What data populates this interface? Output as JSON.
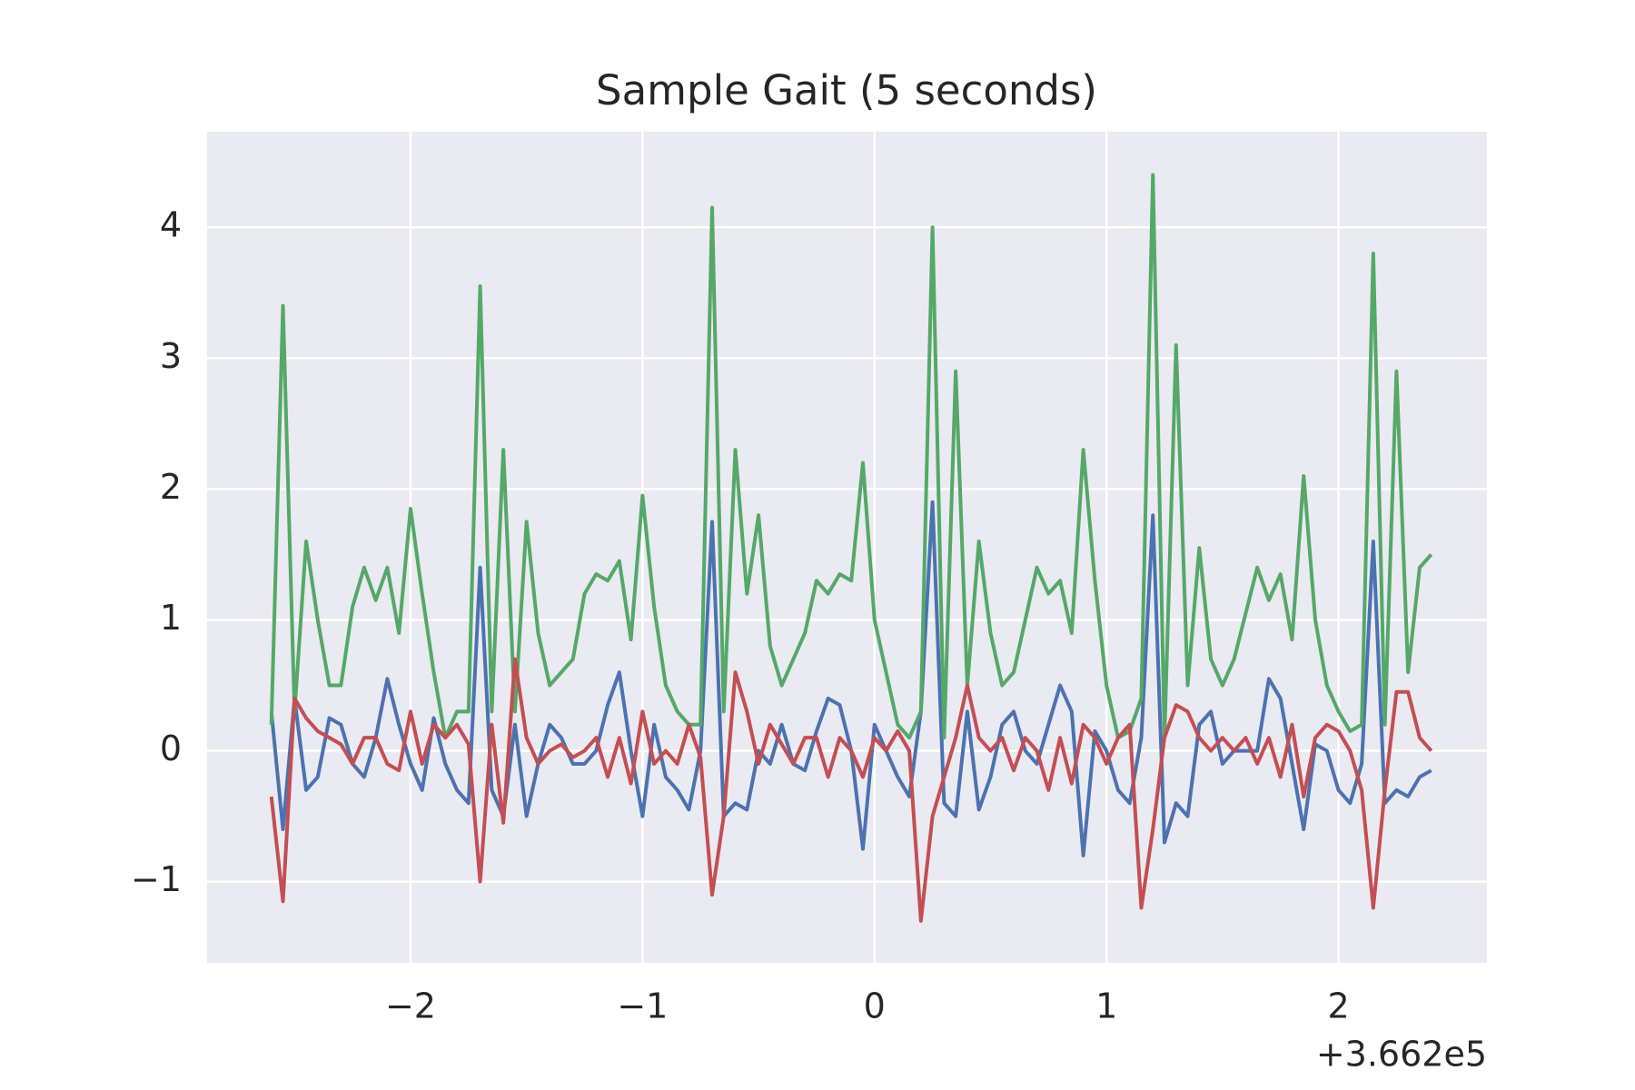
{
  "chart_data": {
    "type": "line",
    "title": "Sample Gait (5 seconds)",
    "x_offset_label": "+3.662e5",
    "x": [
      -2.6,
      -2.55,
      -2.5,
      -2.45,
      -2.4,
      -2.35,
      -2.3,
      -2.25,
      -2.2,
      -2.15,
      -2.1,
      -2.05,
      -2.0,
      -1.95,
      -1.9,
      -1.85,
      -1.8,
      -1.75,
      -1.7,
      -1.65,
      -1.6,
      -1.55,
      -1.5,
      -1.45,
      -1.4,
      -1.35,
      -1.3,
      -1.25,
      -1.2,
      -1.15,
      -1.1,
      -1.05,
      -1.0,
      -0.95,
      -0.9,
      -0.85,
      -0.8,
      -0.75,
      -0.7,
      -0.65,
      -0.6,
      -0.55,
      -0.5,
      -0.45,
      -0.4,
      -0.35,
      -0.3,
      -0.25,
      -0.2,
      -0.15,
      -0.1,
      -0.05,
      0.0,
      0.05,
      0.1,
      0.15,
      0.2,
      0.25,
      0.3,
      0.35,
      0.4,
      0.45,
      0.5,
      0.55,
      0.6,
      0.65,
      0.7,
      0.75,
      0.8,
      0.85,
      0.9,
      0.95,
      1.0,
      1.05,
      1.1,
      1.15,
      1.2,
      1.25,
      1.3,
      1.35,
      1.4,
      1.45,
      1.5,
      1.55,
      1.6,
      1.65,
      1.7,
      1.75,
      1.8,
      1.85,
      1.9,
      1.95,
      2.0,
      2.05,
      2.1,
      2.15,
      2.2,
      2.25,
      2.3,
      2.35,
      2.4
    ],
    "series": [
      {
        "color": "#4c72b0",
        "values": [
          0.3,
          -0.6,
          0.4,
          -0.3,
          -0.2,
          0.25,
          0.2,
          -0.1,
          -0.2,
          0.1,
          0.55,
          0.2,
          -0.1,
          -0.3,
          0.25,
          -0.1,
          -0.3,
          -0.4,
          1.4,
          -0.3,
          -0.5,
          0.2,
          -0.5,
          -0.1,
          0.2,
          0.1,
          -0.1,
          -0.1,
          0.0,
          0.35,
          0.6,
          0.0,
          -0.5,
          0.2,
          -0.2,
          -0.3,
          -0.45,
          0.0,
          1.75,
          -0.5,
          -0.4,
          -0.45,
          0.0,
          -0.1,
          0.2,
          -0.1,
          -0.15,
          0.15,
          0.4,
          0.35,
          0.0,
          -0.75,
          0.2,
          0.0,
          -0.2,
          -0.35,
          0.3,
          1.9,
          -0.4,
          -0.5,
          0.3,
          -0.45,
          -0.2,
          0.2,
          0.3,
          0.0,
          -0.1,
          0.2,
          0.5,
          0.3,
          -0.8,
          0.15,
          0.0,
          -0.3,
          -0.4,
          0.1,
          1.8,
          -0.7,
          -0.4,
          -0.5,
          0.2,
          0.3,
          -0.1,
          0.0,
          0.0,
          0.0,
          0.55,
          0.4,
          -0.1,
          -0.6,
          0.05,
          0.0,
          -0.3,
          -0.4,
          -0.1,
          1.6,
          -0.4,
          -0.3,
          -0.35,
          -0.2,
          -0.15
        ]
      },
      {
        "color": "#55a868",
        "values": [
          0.2,
          3.4,
          0.3,
          1.6,
          1.0,
          0.5,
          0.5,
          1.1,
          1.4,
          1.15,
          1.4,
          0.9,
          1.85,
          1.2,
          0.6,
          0.1,
          0.3,
          0.3,
          3.55,
          0.3,
          2.3,
          0.3,
          1.75,
          0.9,
          0.5,
          0.6,
          0.7,
          1.2,
          1.35,
          1.3,
          1.45,
          0.85,
          1.95,
          1.1,
          0.5,
          0.3,
          0.2,
          0.2,
          4.15,
          0.3,
          2.3,
          1.2,
          1.8,
          0.8,
          0.5,
          0.7,
          0.9,
          1.3,
          1.2,
          1.35,
          1.3,
          2.2,
          1.0,
          0.6,
          0.2,
          0.1,
          0.3,
          4.0,
          0.1,
          2.9,
          0.5,
          1.6,
          0.9,
          0.5,
          0.6,
          1.0,
          1.4,
          1.2,
          1.3,
          0.9,
          2.3,
          1.3,
          0.5,
          0.1,
          0.15,
          0.4,
          4.4,
          0.1,
          3.1,
          0.5,
          1.55,
          0.7,
          0.5,
          0.7,
          1.05,
          1.4,
          1.15,
          1.35,
          0.85,
          2.1,
          1.0,
          0.5,
          0.3,
          0.15,
          0.2,
          3.8,
          0.2,
          2.9,
          0.6,
          1.4,
          1.5
        ]
      },
      {
        "color": "#c44e52",
        "values": [
          -0.35,
          -1.15,
          0.4,
          0.25,
          0.15,
          0.1,
          0.05,
          -0.1,
          0.1,
          0.1,
          -0.1,
          -0.15,
          0.3,
          -0.1,
          0.2,
          0.1,
          0.2,
          0.05,
          -1.0,
          0.2,
          -0.55,
          0.7,
          0.1,
          -0.1,
          0.0,
          0.05,
          -0.05,
          0.0,
          0.1,
          -0.2,
          0.1,
          -0.25,
          0.3,
          -0.1,
          0.0,
          -0.1,
          0.2,
          -0.05,
          -1.1,
          -0.5,
          0.6,
          0.3,
          -0.1,
          0.2,
          0.05,
          -0.1,
          0.1,
          0.1,
          -0.2,
          0.1,
          0.0,
          -0.2,
          0.1,
          0.0,
          0.15,
          0.0,
          -1.3,
          -0.5,
          -0.2,
          0.1,
          0.5,
          0.1,
          0.0,
          0.1,
          -0.15,
          0.1,
          0.0,
          -0.3,
          0.1,
          -0.25,
          0.2,
          0.1,
          -0.1,
          0.1,
          0.2,
          -1.2,
          -0.6,
          0.1,
          0.35,
          0.3,
          0.1,
          0.0,
          0.1,
          0.0,
          0.1,
          -0.1,
          0.1,
          -0.2,
          0.2,
          -0.35,
          0.1,
          0.2,
          0.15,
          0.0,
          -0.3,
          -1.2,
          -0.3,
          0.45,
          0.45,
          0.1,
          0.0
        ]
      }
    ],
    "xlim": [
      -2.877,
      2.64
    ],
    "ylim": [
      -1.62,
      4.73
    ],
    "xticks": [
      {
        "value": -2,
        "label": "−2"
      },
      {
        "value": -1,
        "label": "−1"
      },
      0,
      1,
      2
    ],
    "yticks": [
      {
        "value": -1,
        "label": "−1"
      },
      0,
      1,
      2,
      3,
      4
    ],
    "grid": true,
    "background": "#eaeaf2"
  }
}
